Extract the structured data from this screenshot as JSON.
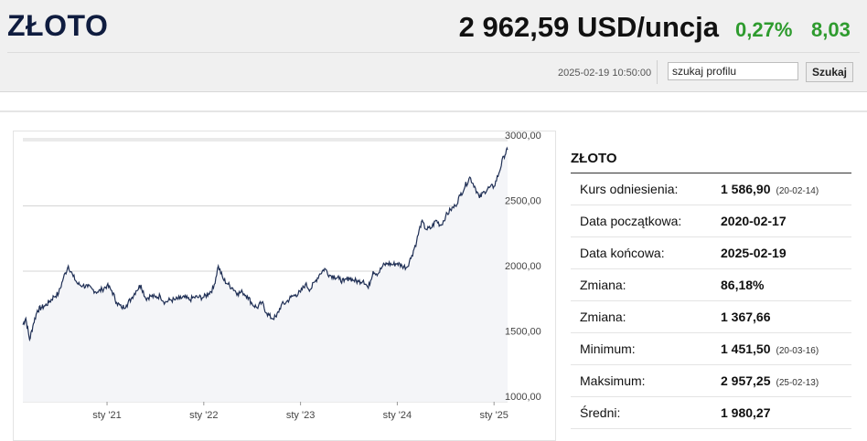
{
  "header": {
    "title": "ZŁOTO",
    "price": "2 962,59 USD/uncja",
    "change_pct": "0,27%",
    "change_abs": "8,03",
    "timestamp": "2025-02-19 10:50:00",
    "change_color": "#2e9b2e"
  },
  "search": {
    "value": "szukaj profilu",
    "button_label": "Szukaj"
  },
  "panel": {
    "title": "ZŁOTO",
    "rows": [
      {
        "label": "Kurs odniesienia:",
        "value": "1 586,90",
        "note": "(20-02-14)"
      },
      {
        "label": "Data początkowa:",
        "value": "2020-02-17",
        "note": ""
      },
      {
        "label": "Data końcowa:",
        "value": "2025-02-19",
        "note": ""
      },
      {
        "label": "Zmiana:",
        "value": "86,18%",
        "note": ""
      },
      {
        "label": "Zmiana:",
        "value": "1 367,66",
        "note": ""
      },
      {
        "label": "Minimum:",
        "value": "1 451,50",
        "note": "(20-03-16)"
      },
      {
        "label": "Maksimum:",
        "value": "2 957,25",
        "note": "(25-02-13)"
      },
      {
        "label": "Średni:",
        "value": "1 980,27",
        "note": ""
      }
    ]
  },
  "chart_data": {
    "type": "area",
    "title": "",
    "xlabel": "",
    "ylabel": "",
    "ylim": [
      1000,
      3000
    ],
    "yticks": [
      1000,
      1500,
      2000,
      2500,
      3000
    ],
    "ytick_labels": [
      "1000,00",
      "1500,00",
      "2000,00",
      "2500,00",
      "3000,00"
    ],
    "xticks": [
      2021.0,
      2022.0,
      2023.0,
      2024.0,
      2025.0
    ],
    "xtick_labels": [
      "sty '21",
      "sty '22",
      "sty '23",
      "sty '24",
      "sty '25"
    ],
    "xlim": [
      2020.13,
      2025.14
    ],
    "grid": true,
    "line_color": "#1f2f55",
    "fill_color": "#f4f5f8",
    "series": [
      {
        "x": [
          2020.13,
          2020.16,
          2020.2,
          2020.24,
          2020.28,
          2020.32,
          2020.36,
          2020.41,
          2020.45,
          2020.5,
          2020.55,
          2020.6,
          2020.65,
          2020.7,
          2020.75,
          2020.8,
          2020.85,
          2020.9,
          2020.95,
          2021.0,
          2021.05,
          2021.1,
          2021.15,
          2021.2,
          2021.25,
          2021.3,
          2021.35,
          2021.4,
          2021.45,
          2021.5,
          2021.55,
          2021.6,
          2021.65,
          2021.7,
          2021.75,
          2021.8,
          2021.85,
          2021.9,
          2021.95,
          2022.0,
          2022.05,
          2022.1,
          2022.15,
          2022.2,
          2022.25,
          2022.3,
          2022.35,
          2022.4,
          2022.45,
          2022.5,
          2022.55,
          2022.6,
          2022.65,
          2022.7,
          2022.75,
          2022.8,
          2022.85,
          2022.9,
          2022.95,
          2023.0,
          2023.05,
          2023.1,
          2023.15,
          2023.2,
          2023.25,
          2023.3,
          2023.35,
          2023.4,
          2023.45,
          2023.5,
          2023.55,
          2023.6,
          2023.65,
          2023.7,
          2023.75,
          2023.8,
          2023.85,
          2023.9,
          2023.95,
          2024.0,
          2024.05,
          2024.1,
          2024.15,
          2024.2,
          2024.25,
          2024.3,
          2024.35,
          2024.4,
          2024.45,
          2024.5,
          2024.55,
          2024.6,
          2024.65,
          2024.7,
          2024.75,
          2024.8,
          2024.85,
          2024.9,
          2024.95,
          2025.0,
          2025.05,
          2025.1,
          2025.14
        ],
        "y": [
          1590,
          1640,
          1475,
          1600,
          1700,
          1720,
          1735,
          1770,
          1805,
          1830,
          1950,
          2040,
          1960,
          1900,
          1890,
          1880,
          1860,
          1840,
          1860,
          1890,
          1850,
          1760,
          1720,
          1740,
          1790,
          1850,
          1895,
          1790,
          1810,
          1800,
          1810,
          1760,
          1780,
          1780,
          1790,
          1800,
          1780,
          1800,
          1800,
          1800,
          1830,
          1870,
          2040,
          1940,
          1900,
          1870,
          1830,
          1840,
          1810,
          1750,
          1720,
          1760,
          1680,
          1640,
          1650,
          1740,
          1760,
          1800,
          1820,
          1840,
          1900,
          1860,
          1920,
          1980,
          2020,
          1970,
          1960,
          1940,
          1920,
          1950,
          1930,
          1920,
          1930,
          1870,
          2000,
          1980,
          2040,
          2060,
          2050,
          2060,
          2040,
          2030,
          2120,
          2230,
          2380,
          2320,
          2330,
          2390,
          2350,
          2420,
          2470,
          2500,
          2580,
          2650,
          2720,
          2650,
          2560,
          2610,
          2640,
          2650,
          2750,
          2880,
          2930
        ]
      }
    ]
  }
}
